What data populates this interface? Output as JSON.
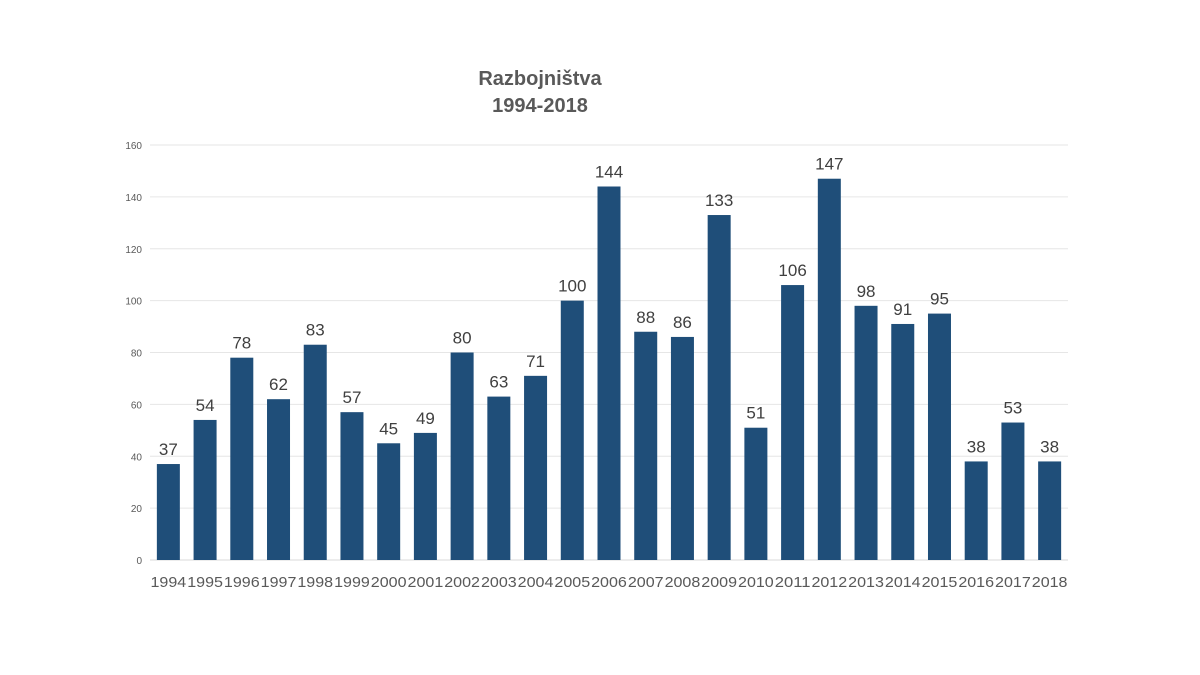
{
  "chart_data": {
    "type": "bar",
    "title": "Razbojništva",
    "subtitle": "1994-2018",
    "xlabel": "",
    "ylabel": "",
    "ylim": [
      0,
      160
    ],
    "yticks": [
      0,
      20,
      40,
      60,
      80,
      100,
      120,
      140,
      160
    ],
    "grid": true,
    "legend": "none",
    "bar_color": "#1f4e79",
    "categories": [
      "1994",
      "1995",
      "1996",
      "1997",
      "1998",
      "1999",
      "2000",
      "2001",
      "2002",
      "2003",
      "2004",
      "2005",
      "2006",
      "2007",
      "2008",
      "2009",
      "2010",
      "2011",
      "2012",
      "2013",
      "2014",
      "2015",
      "2016",
      "2017",
      "2018"
    ],
    "values": [
      37,
      54,
      78,
      62,
      83,
      57,
      45,
      49,
      80,
      63,
      71,
      100,
      144,
      88,
      86,
      133,
      51,
      106,
      147,
      98,
      91,
      95,
      38,
      53,
      38
    ]
  }
}
